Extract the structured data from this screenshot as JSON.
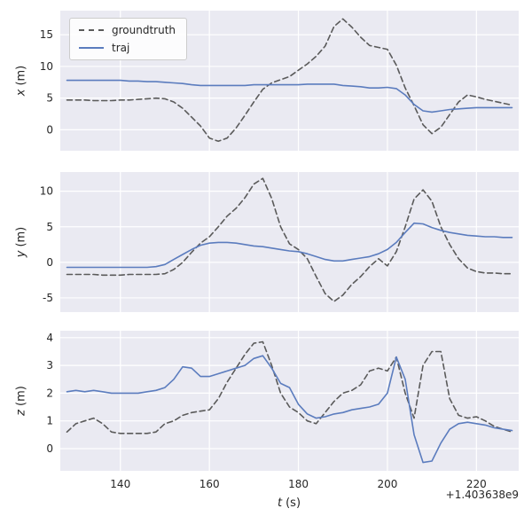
{
  "figure": {
    "xlabel": "t (s)",
    "xlabel_var": "t",
    "xlabel_unit": "(s)",
    "offset_text": "+1.403638e9",
    "x_ticks": [
      140,
      160,
      180,
      200,
      220
    ],
    "x_range": [
      126.5,
      229.5
    ],
    "colors": {
      "groundtruth": "#5a5a5a",
      "traj": "#5b7cbe",
      "axes_bg": "#eaeaf2",
      "grid": "#ffffff",
      "text": "#262626",
      "figure_bg": "#ffffff"
    },
    "legend": {
      "entries": [
        {
          "label": "groundtruth",
          "style": "dashed"
        },
        {
          "label": "traj",
          "style": "solid"
        }
      ]
    }
  },
  "chart_data": [
    {
      "type": "line",
      "ylabel": "x (m)",
      "ylabel_var": "x",
      "ylabel_unit": "(m)",
      "ylim": [
        -3.3,
        18.8
      ],
      "yticks": [
        0,
        5,
        10,
        15
      ],
      "x": [
        128,
        130,
        132,
        134,
        136,
        138,
        140,
        142,
        144,
        146,
        148,
        150,
        152,
        154,
        156,
        158,
        160,
        162,
        164,
        166,
        168,
        170,
        172,
        174,
        176,
        178,
        180,
        182,
        184,
        186,
        188,
        190,
        192,
        194,
        196,
        198,
        200,
        202,
        204,
        206,
        208,
        210,
        212,
        214,
        216,
        218,
        220,
        222,
        224,
        226,
        228
      ],
      "series": [
        {
          "name": "groundtruth",
          "style": "dashed",
          "y": [
            4.7,
            4.7,
            4.7,
            4.6,
            4.6,
            4.6,
            4.7,
            4.7,
            4.8,
            4.9,
            5.0,
            4.9,
            4.4,
            3.4,
            2.0,
            0.6,
            -1.3,
            -1.8,
            -1.3,
            0.3,
            2.3,
            4.4,
            6.4,
            7.4,
            7.9,
            8.4,
            9.4,
            10.4,
            11.6,
            13.2,
            16.3,
            17.5,
            16.2,
            14.6,
            13.3,
            13.0,
            12.7,
            10.2,
            6.6,
            3.8,
            0.8,
            -0.6,
            0.4,
            2.4,
            4.4,
            5.5,
            5.2,
            4.8,
            4.5,
            4.2,
            3.9
          ]
        },
        {
          "name": "traj",
          "style": "solid",
          "y": [
            7.8,
            7.8,
            7.8,
            7.8,
            7.8,
            7.8,
            7.8,
            7.7,
            7.7,
            7.6,
            7.6,
            7.5,
            7.4,
            7.3,
            7.1,
            7.0,
            7.0,
            7.0,
            7.0,
            7.0,
            7.0,
            7.1,
            7.1,
            7.1,
            7.1,
            7.1,
            7.1,
            7.2,
            7.2,
            7.2,
            7.2,
            7.0,
            6.9,
            6.8,
            6.6,
            6.6,
            6.7,
            6.5,
            5.5,
            4.0,
            3.0,
            2.8,
            3.0,
            3.2,
            3.3,
            3.4,
            3.5,
            3.5,
            3.5,
            3.5,
            3.5
          ]
        }
      ]
    },
    {
      "type": "line",
      "ylabel": "y (m)",
      "ylabel_var": "y",
      "ylabel_unit": "(m)",
      "ylim": [
        -7.0,
        12.7
      ],
      "yticks": [
        -5,
        0,
        5,
        10
      ],
      "x": [
        128,
        130,
        132,
        134,
        136,
        138,
        140,
        142,
        144,
        146,
        148,
        150,
        152,
        154,
        156,
        158,
        160,
        162,
        164,
        166,
        168,
        170,
        172,
        174,
        176,
        178,
        180,
        182,
        184,
        186,
        188,
        190,
        192,
        194,
        196,
        198,
        200,
        202,
        204,
        206,
        208,
        210,
        212,
        214,
        216,
        218,
        220,
        222,
        224,
        226,
        228
      ],
      "series": [
        {
          "name": "groundtruth",
          "style": "dashed",
          "y": [
            -1.7,
            -1.7,
            -1.7,
            -1.7,
            -1.8,
            -1.8,
            -1.8,
            -1.7,
            -1.7,
            -1.7,
            -1.7,
            -1.6,
            -1.0,
            0.0,
            1.4,
            2.7,
            3.6,
            5.0,
            6.5,
            7.6,
            9.1,
            11.0,
            11.8,
            9.0,
            5.0,
            2.6,
            1.8,
            0.5,
            -2.0,
            -4.4,
            -5.5,
            -4.6,
            -3.1,
            -2.0,
            -0.6,
            0.5,
            -0.5,
            1.5,
            5.0,
            8.9,
            10.2,
            8.6,
            5.0,
            2.5,
            0.5,
            -0.8,
            -1.3,
            -1.5,
            -1.5,
            -1.6,
            -1.6
          ]
        },
        {
          "name": "traj",
          "style": "solid",
          "y": [
            -0.7,
            -0.7,
            -0.7,
            -0.7,
            -0.7,
            -0.7,
            -0.7,
            -0.7,
            -0.7,
            -0.7,
            -0.6,
            -0.3,
            0.4,
            1.1,
            1.8,
            2.4,
            2.7,
            2.8,
            2.8,
            2.7,
            2.5,
            2.3,
            2.2,
            2.0,
            1.8,
            1.6,
            1.5,
            1.2,
            0.8,
            0.4,
            0.2,
            0.2,
            0.4,
            0.6,
            0.8,
            1.2,
            1.8,
            2.8,
            4.2,
            5.5,
            5.4,
            4.9,
            4.5,
            4.2,
            4.0,
            3.8,
            3.7,
            3.6,
            3.6,
            3.5,
            3.5
          ]
        }
      ]
    },
    {
      "type": "line",
      "ylabel": "z (m)",
      "ylabel_var": "z",
      "ylabel_unit": "(m)",
      "ylim": [
        -0.8,
        4.25
      ],
      "yticks": [
        0,
        1,
        2,
        3,
        4
      ],
      "x": [
        128,
        130,
        132,
        134,
        136,
        138,
        140,
        142,
        144,
        146,
        148,
        150,
        152,
        154,
        156,
        158,
        160,
        162,
        164,
        166,
        168,
        170,
        172,
        174,
        176,
        178,
        180,
        182,
        184,
        186,
        188,
        190,
        192,
        194,
        196,
        198,
        200,
        202,
        204,
        206,
        208,
        210,
        212,
        214,
        216,
        218,
        220,
        222,
        224,
        226,
        228
      ],
      "series": [
        {
          "name": "groundtruth",
          "style": "dashed",
          "y": [
            0.6,
            0.9,
            1.0,
            1.1,
            0.9,
            0.6,
            0.55,
            0.55,
            0.55,
            0.55,
            0.6,
            0.9,
            1.0,
            1.2,
            1.3,
            1.35,
            1.4,
            1.8,
            2.4,
            2.9,
            3.4,
            3.8,
            3.85,
            3.0,
            2.0,
            1.5,
            1.3,
            1.0,
            0.9,
            1.3,
            1.7,
            2.0,
            2.1,
            2.3,
            2.8,
            2.9,
            2.8,
            3.3,
            2.0,
            1.1,
            3.0,
            3.5,
            3.5,
            1.8,
            1.2,
            1.1,
            1.15,
            1.0,
            0.8,
            0.7,
            0.6
          ]
        },
        {
          "name": "traj",
          "style": "solid",
          "y": [
            2.05,
            2.1,
            2.05,
            2.1,
            2.05,
            2.0,
            2.0,
            2.0,
            2.0,
            2.05,
            2.1,
            2.2,
            2.5,
            2.95,
            2.9,
            2.6,
            2.6,
            2.7,
            2.8,
            2.9,
            3.0,
            3.25,
            3.35,
            2.9,
            2.35,
            2.2,
            1.6,
            1.25,
            1.1,
            1.15,
            1.25,
            1.3,
            1.4,
            1.45,
            1.5,
            1.6,
            2.0,
            3.3,
            2.5,
            0.5,
            -0.5,
            -0.45,
            0.2,
            0.7,
            0.9,
            0.95,
            0.9,
            0.85,
            0.75,
            0.7,
            0.65
          ]
        }
      ]
    }
  ]
}
